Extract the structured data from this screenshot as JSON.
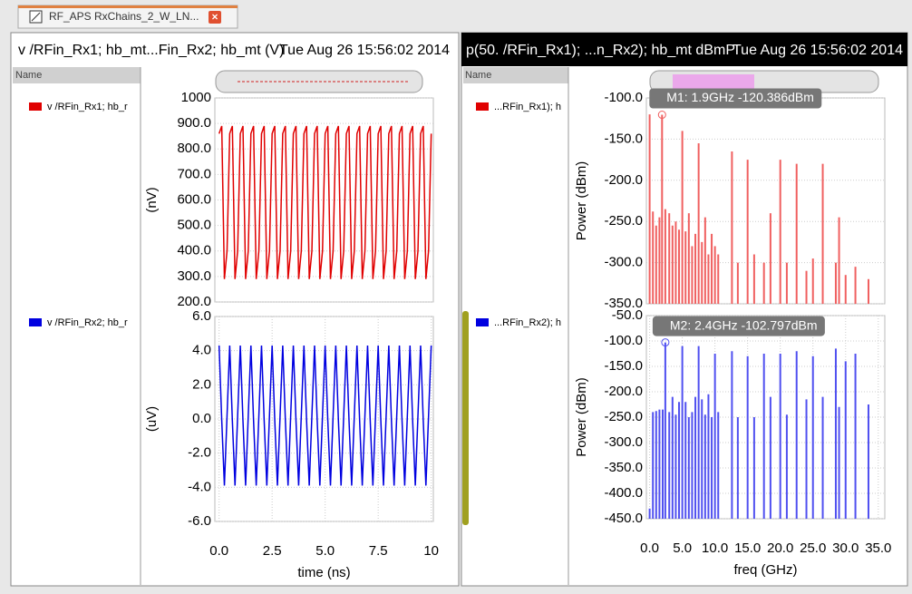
{
  "tab": {
    "title": "RF_APS RxChains_2_W_LN..."
  },
  "panels": [
    {
      "header": "v /RFin_Rx1; hb_mt...Fin_Rx2; hb_mt (V)",
      "timestamp": "Tue Aug 26 15:56:02 2014",
      "list_header": "Name",
      "traces": [
        "v /RFin_Rx1; hb_r",
        "v /RFin_Rx2; hb_r"
      ]
    },
    {
      "header": "p(50. /RFin_Rx1); ...n_Rx2); hb_mt dBmP",
      "timestamp": "Tue Aug 26 15:56:02 2014",
      "list_header": "Name",
      "traces": [
        "...RFin_Rx1); h",
        "...RFin_Rx2); h"
      ]
    }
  ],
  "chart_data": [
    {
      "type": "line",
      "ylabel": "(nV)",
      "color": "#e00000",
      "grid": true,
      "x": [
        0,
        0.125,
        0.25,
        0.375,
        0.5,
        0.625,
        0.75,
        0.875,
        1,
        1.125,
        1.25,
        1.375,
        1.5,
        1.625,
        1.75,
        1.875,
        2,
        2.125,
        2.25,
        2.375,
        2.5,
        2.625,
        2.75,
        2.875,
        3,
        3.125,
        3.25,
        3.375,
        3.5,
        3.625,
        3.75,
        3.875,
        4,
        4.125,
        4.25,
        4.375,
        4.5,
        4.625,
        4.75,
        4.875,
        5,
        5.125,
        5.25,
        5.375,
        5.5,
        5.625,
        5.75,
        5.875,
        6,
        6.125,
        6.25,
        6.375,
        6.5,
        6.625,
        6.75,
        6.875,
        7,
        7.125,
        7.25,
        7.375,
        7.5,
        7.625,
        7.75,
        7.875,
        8,
        8.125,
        8.25,
        8.375,
        8.5,
        8.625,
        8.75,
        8.875,
        9,
        9.125,
        9.25,
        9.375,
        9.5,
        9.625,
        9.75,
        9.875,
        10
      ],
      "values": [
        860,
        890,
        290,
        400,
        860,
        890,
        290,
        400,
        860,
        890,
        290,
        400,
        860,
        890,
        290,
        400,
        860,
        890,
        290,
        400,
        860,
        890,
        290,
        400,
        860,
        890,
        290,
        400,
        860,
        890,
        290,
        400,
        860,
        890,
        290,
        400,
        860,
        890,
        290,
        400,
        860,
        890,
        290,
        400,
        860,
        890,
        290,
        400,
        860,
        890,
        290,
        400,
        860,
        890,
        290,
        400,
        860,
        890,
        290,
        400,
        860,
        890,
        290,
        400,
        860,
        890,
        290,
        400,
        860,
        890,
        290,
        400,
        860,
        890,
        290,
        400,
        860,
        890,
        290,
        400,
        860
      ],
      "xlim": [
        -0.2,
        10.1
      ],
      "ylim": [
        200,
        1000
      ],
      "yticks": [
        {
          "value": 200,
          "label": "200.0"
        },
        {
          "value": 300,
          "label": "300.0"
        },
        {
          "value": 400,
          "label": "400.0"
        },
        {
          "value": 500,
          "label": "500.0"
        },
        {
          "value": 600,
          "label": "600.0"
        },
        {
          "value": 700,
          "label": "700.0"
        },
        {
          "value": 800,
          "label": "800.0"
        },
        {
          "value": 900,
          "label": "900.0"
        },
        1000
      ]
    },
    {
      "type": "line",
      "ylabel": "(uV)",
      "xlabel": "time (ns)",
      "color": "#0000e0",
      "grid": true,
      "x": [
        0,
        0.125,
        0.25,
        0.375,
        0.5,
        0.625,
        0.75,
        0.875,
        1,
        1.125,
        1.25,
        1.375,
        1.5,
        1.625,
        1.75,
        1.875,
        2,
        2.125,
        2.25,
        2.375,
        2.5,
        2.625,
        2.75,
        2.875,
        3,
        3.125,
        3.25,
        3.375,
        3.5,
        3.625,
        3.75,
        3.875,
        4,
        4.125,
        4.25,
        4.375,
        4.5,
        4.625,
        4.75,
        4.875,
        5,
        5.125,
        5.25,
        5.375,
        5.5,
        5.625,
        5.75,
        5.875,
        6,
        6.125,
        6.25,
        6.375,
        6.5,
        6.625,
        6.75,
        6.875,
        7,
        7.125,
        7.25,
        7.375,
        7.5,
        7.625,
        7.75,
        7.875,
        8,
        8.125,
        8.25,
        8.375,
        8.5,
        8.625,
        8.75,
        8.875,
        9,
        9.125,
        9.25,
        9.375,
        9.5,
        9.625,
        9.75,
        9.875,
        10
      ],
      "values": [
        4.3,
        -0.1,
        -3.9,
        0.2,
        4.3,
        -0.1,
        -3.9,
        0.2,
        4.3,
        -0.1,
        -3.9,
        0.2,
        4.3,
        -0.1,
        -3.9,
        0.2,
        4.3,
        -0.1,
        -3.9,
        0.2,
        4.3,
        -0.1,
        -3.9,
        0.2,
        4.3,
        -0.1,
        -3.9,
        0.2,
        4.3,
        -0.1,
        -3.9,
        0.2,
        4.3,
        -0.1,
        -3.9,
        0.2,
        4.3,
        -0.1,
        -3.9,
        0.2,
        4.3,
        -0.1,
        -3.9,
        0.2,
        4.3,
        -0.1,
        -3.9,
        0.2,
        4.3,
        -0.1,
        -3.9,
        0.2,
        4.3,
        -0.1,
        -3.9,
        0.2,
        4.3,
        -0.1,
        -3.9,
        0.2,
        4.3,
        -0.1,
        -3.9,
        0.2,
        4.3,
        -0.1,
        -3.9,
        0.2,
        4.3,
        -0.1,
        -3.9,
        0.2,
        4.3,
        -0.1,
        -3.9,
        0.2,
        4.3,
        -0.1,
        -3.9,
        0.2,
        4.3
      ],
      "xlim": [
        -0.2,
        10.1
      ],
      "ylim": [
        -6,
        6
      ],
      "xticks": [
        {
          "value": 0,
          "label": "0.0"
        },
        2.5,
        {
          "value": 5,
          "label": "5.0"
        },
        7.5,
        10
      ],
      "yticks": [
        {
          "value": -6,
          "label": "-6.0"
        },
        {
          "value": -4,
          "label": "-4.0"
        },
        {
          "value": -2,
          "label": "-2.0"
        },
        {
          "value": 0,
          "label": "0.0"
        },
        {
          "value": 2,
          "label": "2.0"
        },
        {
          "value": 4,
          "label": "4.0"
        },
        {
          "value": 6,
          "label": "6.0"
        }
      ]
    },
    {
      "type": "bar",
      "ylabel": "Power (dBm)",
      "color": "#f06060",
      "grid": true,
      "x": [
        0,
        0.5,
        1,
        1.5,
        1.9,
        2.4,
        3,
        3.5,
        4,
        4.5,
        5,
        5.5,
        6,
        6.5,
        7,
        7.5,
        8,
        8.5,
        9,
        9.5,
        10,
        10.5,
        12.6,
        13.5,
        15,
        16,
        17.5,
        18.5,
        20,
        21,
        22.5,
        24,
        25,
        26.5,
        28.5,
        29,
        30,
        31.5,
        33.5
      ],
      "values": [
        -120,
        -238,
        -255,
        -245,
        -120.386,
        -235,
        -240,
        -255,
        -250,
        -260,
        -140,
        -262,
        -240,
        -280,
        -265,
        -155,
        -275,
        -245,
        -290,
        -265,
        -280,
        -290,
        -165,
        -300,
        -175,
        -290,
        -300,
        -240,
        -175,
        -300,
        -180,
        -310,
        -295,
        -180,
        -300,
        -245,
        -315,
        -305,
        -320
      ],
      "xlim": [
        -0.5,
        36
      ],
      "ylim": [
        -350,
        -100
      ],
      "yticks": [
        {
          "value": -350,
          "label": "-350.0"
        },
        {
          "value": -300,
          "label": "-300.0"
        },
        {
          "value": -250,
          "label": "-250.0"
        },
        {
          "value": -200,
          "label": "-200.0"
        },
        {
          "value": -150,
          "label": "-150.0"
        },
        {
          "value": -100,
          "label": "-100.0"
        }
      ],
      "marker": {
        "label": "M1: 1.9GHz -120.386dBm",
        "x": 1.9,
        "y": -120.386
      }
    },
    {
      "type": "bar",
      "ylabel": "Power (dBm)",
      "xlabel": "freq (GHz)",
      "color": "#5050f0",
      "grid": true,
      "x": [
        0,
        0.5,
        1,
        1.5,
        2,
        2.4,
        3,
        3.5,
        4,
        4.5,
        5,
        5.5,
        6,
        6.5,
        7,
        7.5,
        8,
        8.5,
        9,
        9.5,
        10,
        10.5,
        12.6,
        13.5,
        15,
        16,
        17.5,
        18.5,
        20,
        21,
        22.5,
        24,
        25,
        26.5,
        28.5,
        29,
        30,
        31.5,
        33.5
      ],
      "values": [
        -430,
        -240,
        -238,
        -235,
        -235,
        -102.797,
        -240,
        -210,
        -245,
        -220,
        -110,
        -220,
        -250,
        -240,
        -210,
        -110,
        -215,
        -245,
        -205,
        -250,
        -125,
        -240,
        -120,
        -250,
        -130,
        -250,
        -125,
        -210,
        -125,
        -245,
        -120,
        -215,
        -130,
        -210,
        -115,
        -230,
        -140,
        -125,
        -225
      ],
      "xlim": [
        -0.5,
        36
      ],
      "ylim": [
        -450,
        -50
      ],
      "xticks": [
        {
          "value": 0,
          "label": "0.0"
        },
        {
          "value": 5,
          "label": "5.0"
        },
        {
          "value": 10,
          "label": "10.0"
        },
        {
          "value": 15,
          "label": "15.0"
        },
        {
          "value": 20,
          "label": "20.0"
        },
        {
          "value": 25,
          "label": "25.0"
        },
        {
          "value": 30,
          "label": "30.0"
        },
        {
          "value": 35,
          "label": "35.0"
        }
      ],
      "yticks": [
        {
          "value": -450,
          "label": "-450.0"
        },
        {
          "value": -400,
          "label": "-400.0"
        },
        {
          "value": -350,
          "label": "-350.0"
        },
        {
          "value": -300,
          "label": "-300.0"
        },
        {
          "value": -250,
          "label": "-250.0"
        },
        {
          "value": -200,
          "label": "-200.0"
        },
        {
          "value": -150,
          "label": "-150.0"
        },
        {
          "value": -100,
          "label": "-100.0"
        },
        {
          "value": -50,
          "label": "-50.0"
        }
      ],
      "marker": {
        "label": "M2: 2.4GHz -102.797dBm",
        "x": 2.4,
        "y": -102.797
      }
    }
  ]
}
